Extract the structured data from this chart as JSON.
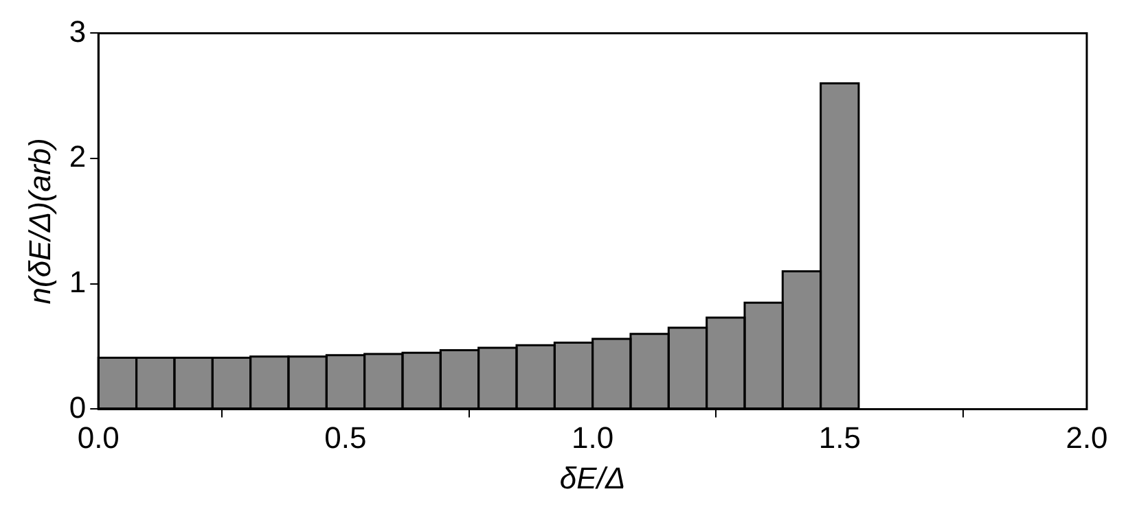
{
  "chart_data": {
    "type": "histogram",
    "xlabel": "δE/Δ",
    "ylabel": "n(δE/Δ)(arb)",
    "bins": [
      0,
      0.0769,
      0.1538,
      0.2308,
      0.3077,
      0.3846,
      0.4615,
      0.5385,
      0.6154,
      0.6923,
      0.7692,
      0.8462,
      0.9231,
      1,
      1.0769,
      1.1538,
      1.2308,
      1.3077,
      1.3846,
      1.4615,
      1.5385
    ],
    "values": [
      0.41,
      0.41,
      0.41,
      0.41,
      0.42,
      0.42,
      0.43,
      0.44,
      0.45,
      0.47,
      0.49,
      0.51,
      0.53,
      0.56,
      0.6,
      0.65,
      0.73,
      0.85,
      1.1,
      2.6
    ],
    "color": "#888888",
    "xlim": [
      0,
      2
    ],
    "ylim": [
      0,
      3
    ],
    "xticks": [
      {
        "value": 0,
        "label": "0.0"
      },
      {
        "value": 0.5,
        "label": "0.5"
      },
      {
        "value": 1,
        "label": "1.0"
      },
      {
        "value": 1.5,
        "label": "1.5"
      },
      {
        "value": 2,
        "label": "2.0"
      }
    ],
    "yticks": [
      0,
      1,
      2,
      3
    ],
    "grid": false,
    "legend": false
  }
}
